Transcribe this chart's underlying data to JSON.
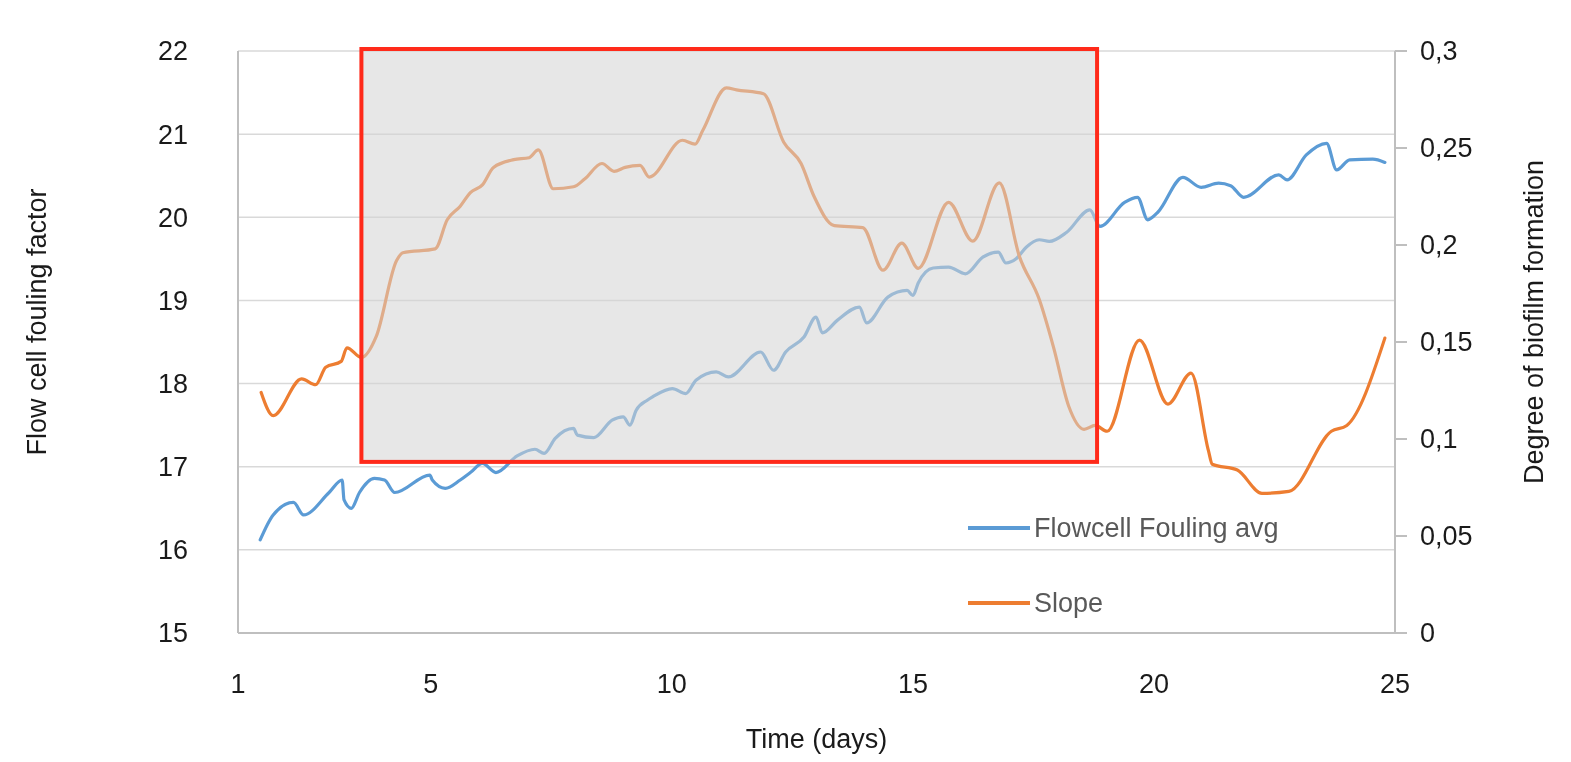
{
  "chart_data": {
    "type": "line",
    "xlabel": "Time (days)",
    "ylabel": "Flow cell fouling factor",
    "y2label": "Degree of biofilm formation",
    "xlim": [
      1,
      25
    ],
    "xticks": [
      1,
      5,
      10,
      15,
      20,
      25
    ],
    "ylim": [
      15,
      22
    ],
    "yticks": [
      15,
      16,
      17,
      18,
      19,
      20,
      21,
      22
    ],
    "y2lim": [
      0,
      0.3
    ],
    "y2ticks": [
      {
        "value": 0,
        "label": "0"
      },
      {
        "value": 0.05,
        "label": "0,05"
      },
      {
        "value": 0.1,
        "label": "0,1"
      },
      {
        "value": 0.15,
        "label": "0,15"
      },
      {
        "value": 0.2,
        "label": "0,2"
      },
      {
        "value": 0.25,
        "label": "0,25"
      },
      {
        "value": 0.3,
        "label": "0,3"
      }
    ],
    "grid": "y",
    "legend": "bottom right",
    "bands": [
      {
        "axis": "x",
        "from": 3.56,
        "to": 18.82,
        "color": "#d4d4d4"
      }
    ],
    "series": [
      {
        "name": "Flowcell Fouling avg",
        "color": "#5b9bd5",
        "x": [
          1.46,
          1.73,
          2.15,
          2.36,
          2.89,
          3.16,
          3.2,
          3.35,
          3.52,
          3.83,
          4.04,
          4.25,
          4.98,
          5.03,
          5.3,
          5.61,
          5.82,
          6.07,
          6.35,
          6.79,
          7.16,
          7.35,
          7.58,
          7.96,
          8.04,
          8.38,
          8.76,
          8.99,
          9.13,
          9.26,
          9.49,
          9.6,
          10.01,
          10.29,
          10.5,
          10.92,
          11.17,
          11.84,
          12.11,
          12.36,
          12.74,
          12.99,
          13.12,
          13.43,
          13.89,
          14.04,
          14.48,
          14.88,
          15.0,
          15.11,
          15.42,
          15.74,
          16.09,
          16.45,
          16.77,
          16.93,
          17.14,
          17.35,
          17.62,
          17.83,
          18.19,
          18.67,
          18.88,
          19.39,
          19.66,
          19.87,
          20.08,
          20.6,
          20.98,
          21.34,
          21.59,
          21.86,
          22.59,
          22.76,
          23.16,
          23.58,
          23.79,
          24.06,
          24.54,
          24.79
        ],
        "values": [
          16.12,
          16.42,
          16.57,
          16.42,
          16.69,
          16.84,
          16.6,
          16.5,
          16.69,
          16.86,
          16.84,
          16.69,
          16.9,
          16.84,
          16.74,
          16.84,
          16.93,
          17.04,
          16.93,
          17.13,
          17.21,
          17.16,
          17.34,
          17.46,
          17.38,
          17.35,
          17.56,
          17.6,
          17.5,
          17.68,
          17.8,
          17.84,
          17.94,
          17.88,
          18.04,
          18.14,
          18.08,
          18.38,
          18.16,
          18.38,
          18.56,
          18.8,
          18.61,
          18.76,
          18.92,
          18.73,
          19.04,
          19.12,
          19.06,
          19.21,
          19.39,
          19.4,
          19.32,
          19.52,
          19.58,
          19.45,
          19.5,
          19.64,
          19.73,
          19.71,
          19.82,
          20.09,
          19.89,
          20.18,
          20.24,
          19.97,
          20.06,
          20.48,
          20.36,
          20.41,
          20.38,
          20.24,
          20.51,
          20.45,
          20.75,
          20.89,
          20.57,
          20.69,
          20.7,
          20.66
        ]
      },
      {
        "name": "Slope",
        "color": "#ed7d31",
        "axis": "y2",
        "x": [
          1.48,
          1.73,
          2.32,
          2.61,
          2.82,
          3.14,
          3.26,
          3.56,
          3.87,
          4.29,
          4.42,
          5.09,
          5.34,
          5.61,
          5.82,
          6.07,
          6.3,
          6.72,
          7.04,
          7.23,
          7.54,
          7.96,
          8.19,
          8.55,
          8.8,
          9.03,
          9.34,
          9.53,
          10.22,
          10.48,
          10.64,
          11.13,
          11.34,
          11.9,
          12.32,
          12.68,
          12.95,
          13.37,
          13.96,
          14.38,
          14.77,
          15.11,
          15.74,
          16.24,
          16.79,
          17.21,
          17.62,
          17.92,
          18.23,
          18.55,
          18.78,
          19.03,
          19.7,
          20.29,
          20.77,
          21.13,
          21.21,
          21.73,
          22.24,
          22.8,
          23.68,
          24.0,
          24.79
        ],
        "values": [
          0.124,
          0.112,
          0.131,
          0.128,
          0.137,
          0.14,
          0.147,
          0.142,
          0.153,
          0.192,
          0.196,
          0.198,
          0.213,
          0.22,
          0.227,
          0.231,
          0.24,
          0.244,
          0.245,
          0.249,
          0.229,
          0.23,
          0.234,
          0.242,
          0.238,
          0.24,
          0.241,
          0.235,
          0.254,
          0.252,
          0.259,
          0.281,
          0.28,
          0.278,
          0.253,
          0.242,
          0.225,
          0.21,
          0.209,
          0.187,
          0.201,
          0.188,
          0.222,
          0.202,
          0.232,
          0.194,
          0.172,
          0.147,
          0.117,
          0.105,
          0.107,
          0.104,
          0.151,
          0.118,
          0.134,
          0.094,
          0.087,
          0.084,
          0.072,
          0.073,
          0.104,
          0.107,
          0.152
        ]
      }
    ]
  }
}
